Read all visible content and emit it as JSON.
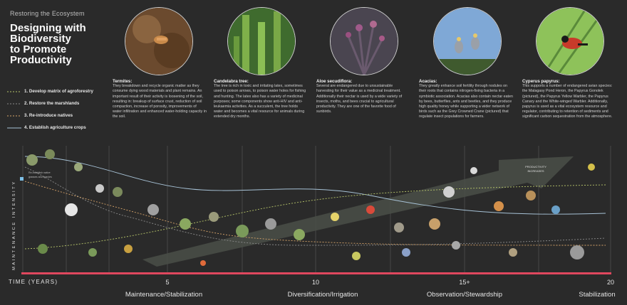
{
  "header": {
    "kicker": "Restoring the Ecosystem",
    "title": "Designing with\nBiodiversity\nto Promote\nProductivity"
  },
  "legend": [
    {
      "label": "1. Develop matrix of agroforestry",
      "color": "#b7c56a",
      "dash": "2,2"
    },
    {
      "label": "2. Restore the marshlands",
      "color": "#8b8b8b",
      "dash": "2,2"
    },
    {
      "label": "3. Re-introduce natives",
      "color": "#d8a56a",
      "dash": "2,2"
    },
    {
      "label": "4. Establish agriculture crops",
      "color": "#a7c2d6",
      "dash": ""
    }
  ],
  "species": [
    {
      "name": "Termites:",
      "text": "They breakdown and recycle organic matter as they consume dying wood materials and plant remains. An important result of their activity is loosening of the soil, resulting in: breakup of surface crust, reduction of soil compaction, increase of porosity, improvements of water infiltration and enhanced water-holding capacity in the soil.",
      "icon": "termite-photo"
    },
    {
      "name": "Candelabra tree:",
      "text": "The tree is rich in toxic and irritating latex, sometimes used to poison arrows, to poison water holes for fishing and hunting. The latex also has a variety of medicinal purposes; some components show anti-HIV and anti-leukaemia activities. As a succulent, the tree holds water and becomes a vital resource for animals during extended dry months.",
      "icon": "candelabra-photo"
    },
    {
      "name": "Aloe secudiflora:",
      "text": "Several are endangered due to unsustainable harvesting for their value as a medicinal treatment. Additionally their nectar is used by a wide variety of insects, moths, and bees crucial to agricultural productivity. They are one of the favorite food of sunbirds.",
      "icon": "aloe-photo"
    },
    {
      "name": "Acacias:",
      "text": "They greatly enhance soil fertility through nodules on their roots that contains nitrogen-fixing bacteria in a symbiotic association. Acacias also contain nectar eaten by bees, butterflies, ants and beetles, and they produce high quality honey while supporting a wider network of birds such as the Grey Crowned Crane (pictured) that regulate insect populations for farmers.",
      "icon": "acacia-crane-photo"
    },
    {
      "name": "Cyperus papyrus:",
      "text": "This supports a number of endangered avian species: the Malagasy Pond Heron, the Papyrus Gonolek (pictured), the Papyrus Yellow Warbler, the Papyrus Canary and the White-winged Warbler. Additionally, papyrus is used as a vital ecosystem resource and regulator, contributing to retention of sediments and significant carbon sequestration from the atmosphere.",
      "icon": "papyrus-bird-photo"
    }
  ],
  "chart_data": {
    "type": "line",
    "ylabel": "MAINTENANCE INTENSITY",
    "xlabel": "TIME (YEARS)",
    "xlim": [
      0,
      20
    ],
    "ticks": [
      "5",
      "10",
      "15+",
      "20"
    ],
    "phases": [
      "Maintenance/Stabilization",
      "Diversification/Irrigation",
      "Observation/Stewardship",
      "Stabilization"
    ],
    "annotations": {
      "productivity": "PRODUCTIVITY\nINCREASES",
      "note": "Re-establish native\ngrasses and species"
    },
    "colors": {
      "line1": "#b7c56a",
      "line2": "#8b8b8b",
      "line3": "#d8a56a",
      "line4": "#a7c2d6",
      "timeline": "#e0475e"
    }
  }
}
